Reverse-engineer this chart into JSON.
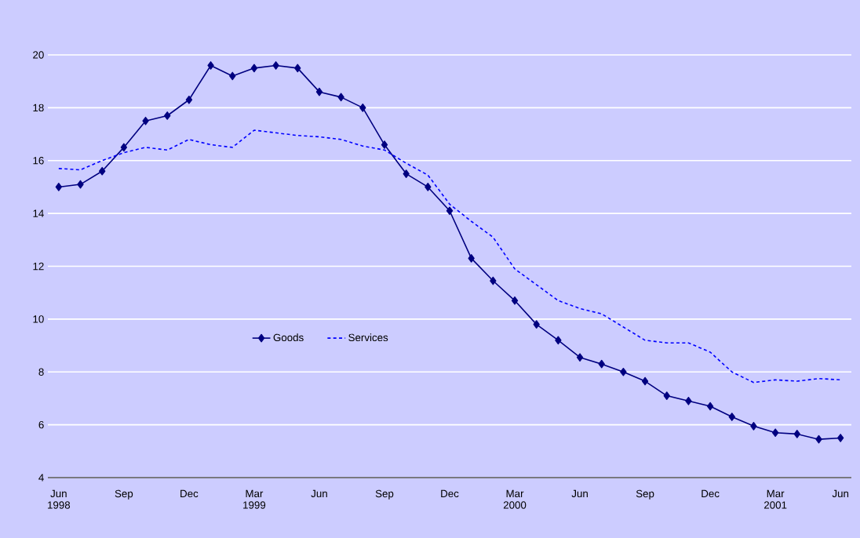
{
  "chart_data": {
    "type": "line",
    "categories": [
      "Jun 1998",
      null,
      null,
      "Sep",
      null,
      null,
      "Dec",
      null,
      null,
      "Mar 1999",
      null,
      null,
      "Jun",
      null,
      null,
      "Sep",
      null,
      null,
      "Dec",
      null,
      null,
      "Mar 2000",
      null,
      null,
      "Jun",
      null,
      null,
      "Sep",
      null,
      null,
      "Dec",
      null,
      null,
      "Mar 2001",
      null,
      null,
      "Jun"
    ],
    "series": [
      {
        "name": "Goods",
        "color": "#000080",
        "line_style": "solid",
        "marker": "diamond",
        "values": [
          15.0,
          15.1,
          15.6,
          16.5,
          17.5,
          17.7,
          18.3,
          19.6,
          19.2,
          19.5,
          19.6,
          19.5,
          18.6,
          18.4,
          18.0,
          16.6,
          15.5,
          15.0,
          14.1,
          12.3,
          11.45,
          10.7,
          9.8,
          9.2,
          8.55,
          8.3,
          8.0,
          7.65,
          7.1,
          6.9,
          6.7,
          6.3,
          5.95,
          5.7,
          5.65,
          5.45,
          5.5
        ]
      },
      {
        "name": "Services",
        "color": "#0000ff",
        "line_style": "dashed",
        "marker": "none",
        "values": [
          15.7,
          15.65,
          16.0,
          16.3,
          16.5,
          16.4,
          16.8,
          16.6,
          16.5,
          17.15,
          17.05,
          16.95,
          16.9,
          16.8,
          16.55,
          16.4,
          15.9,
          15.45,
          14.35,
          13.7,
          13.1,
          11.9,
          11.3,
          10.7,
          10.4,
          10.2,
          9.7,
          9.2,
          9.1,
          9.1,
          8.75,
          8.0,
          7.6,
          7.7,
          7.65,
          7.75,
          7.7
        ]
      }
    ],
    "ylim": [
      4,
      20
    ],
    "yticks": [
      4,
      6,
      8,
      10,
      12,
      14,
      16,
      18,
      20
    ],
    "grid": "y",
    "legend": "center"
  }
}
